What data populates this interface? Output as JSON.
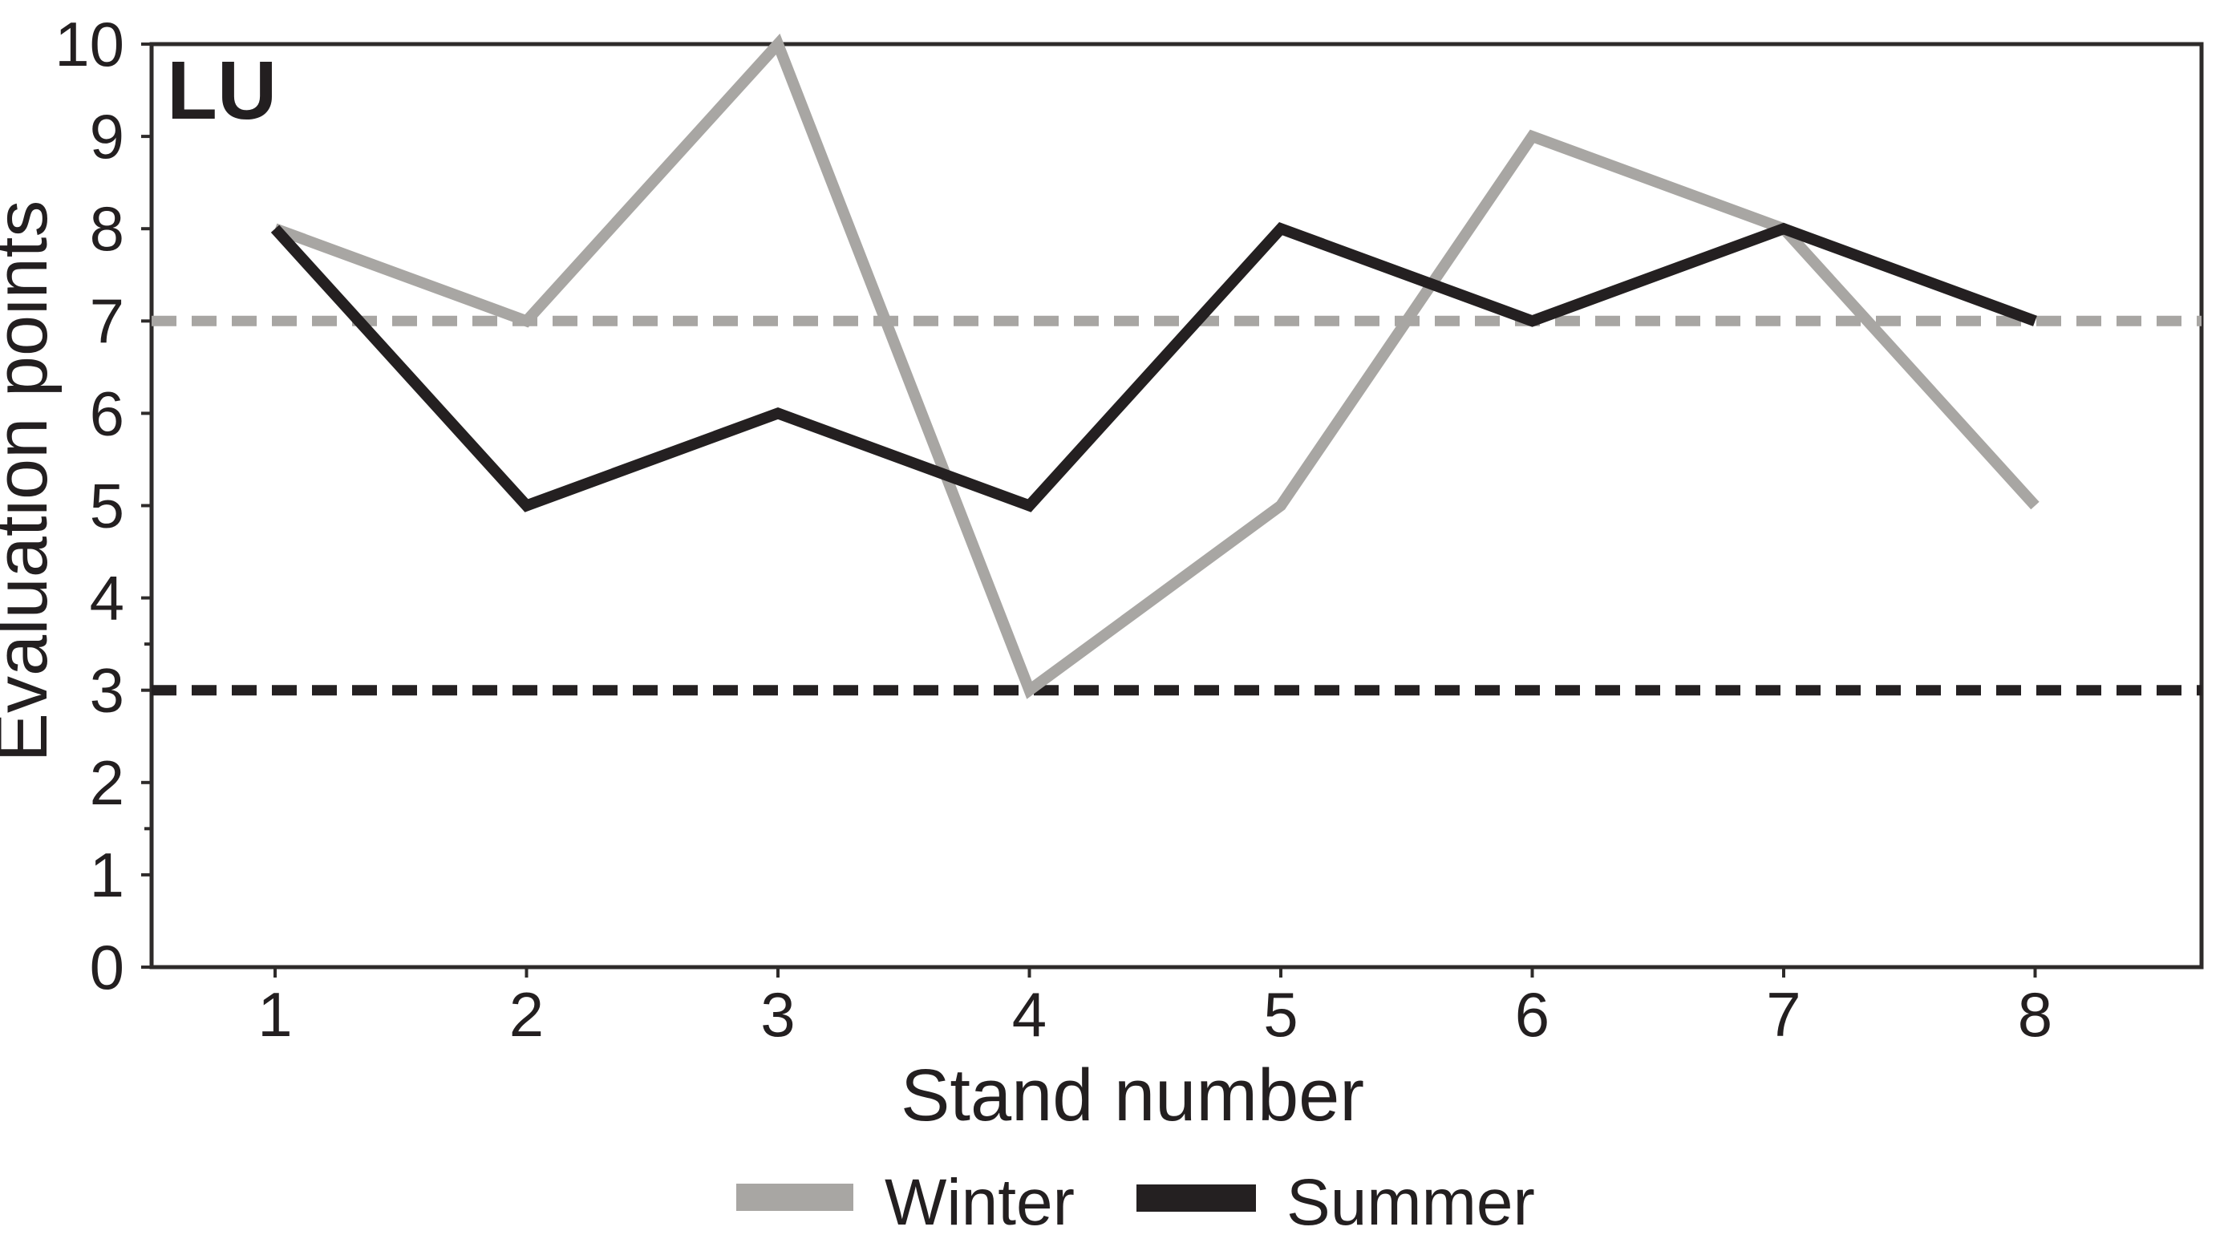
{
  "figure": {
    "panel_title": "LU",
    "xlabel": "Stand number",
    "ylabel": "Evaluation points"
  },
  "chart_data": {
    "type": "line",
    "title": "LU",
    "xlabel": "Stand number",
    "ylabel": "Evaluation points",
    "x": [
      1,
      2,
      3,
      4,
      5,
      6,
      7,
      8
    ],
    "series": [
      {
        "name": "Winter",
        "color": "#a8a6a3",
        "style": "solid",
        "values": [
          8,
          7,
          10,
          3,
          5,
          9,
          8,
          5
        ]
      },
      {
        "name": "Summer",
        "color": "#242021",
        "style": "solid",
        "values": [
          8,
          5,
          6,
          5,
          8,
          7,
          8,
          7
        ]
      }
    ],
    "reference_lines": [
      {
        "value": 3,
        "color": "#242021",
        "style": "dashed"
      },
      {
        "value": 7,
        "color": "#a8a6a3",
        "style": "dashed"
      }
    ],
    "ylim": [
      0,
      10
    ],
    "y_tick_step": 1,
    "y_minor_ticks": [
      1.5,
      3.5
    ],
    "x_ticks": [
      1,
      2,
      3,
      4,
      5,
      6,
      7,
      8
    ],
    "grid": false,
    "legend_position": "bottom",
    "axis_color": "#2e2b2a",
    "text_color": "#231f20"
  }
}
